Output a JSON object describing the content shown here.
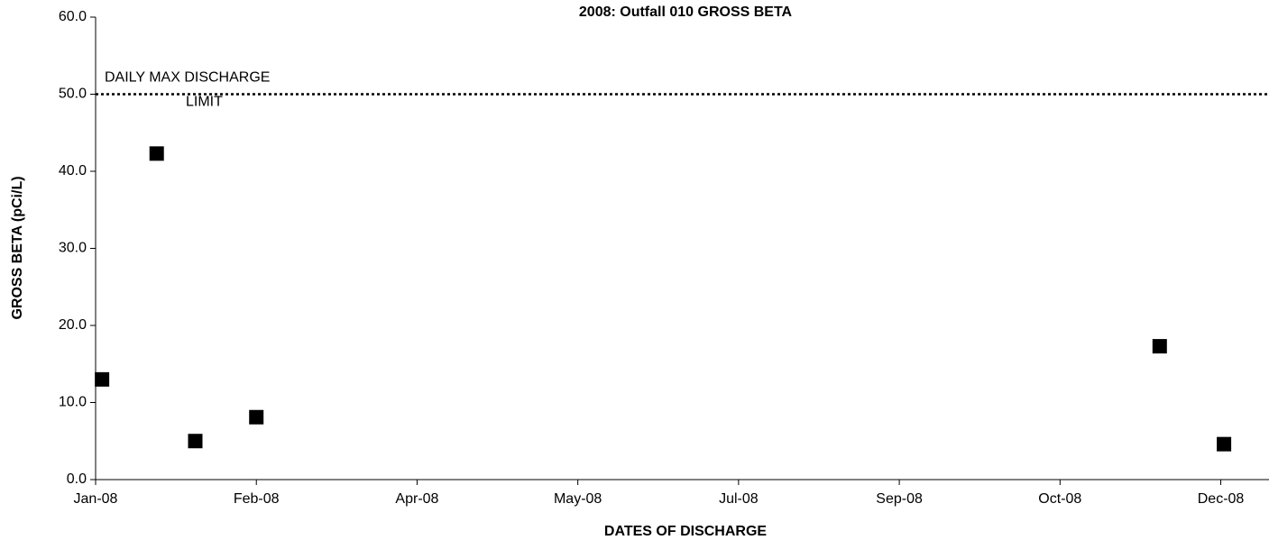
{
  "chart_data": {
    "type": "scatter",
    "title": "2008: Outfall 010 GROSS BETA",
    "x_label": "DATES OF DISCHARGE",
    "y_label": "GROSS BETA (pCi/L)",
    "series": [
      {
        "color": "#000000",
        "x": [
          2,
          19,
          31,
          50,
          331,
          351
        ],
        "values": [
          13.0,
          42.3,
          5.0,
          8.1,
          17.3,
          4.6
        ]
      }
    ],
    "xlim": [
      0,
      365
    ],
    "xticks": [
      {
        "value": 0,
        "label": "Jan-08"
      },
      {
        "value": 50,
        "label": "Feb-08"
      },
      {
        "value": 100,
        "label": "Apr-08"
      },
      {
        "value": 150,
        "label": "May-08"
      },
      {
        "value": 200,
        "label": "Jul-08"
      },
      {
        "value": 250,
        "label": "Sep-08"
      },
      {
        "value": 300,
        "label": "Oct-08"
      },
      {
        "value": 350,
        "label": "Dec-08"
      }
    ],
    "ylim": [
      0,
      60
    ],
    "yticks": [
      {
        "value": 0,
        "label": "0.0"
      },
      {
        "value": 10,
        "label": "10.0"
      },
      {
        "value": 20,
        "label": "20.0"
      },
      {
        "value": 30,
        "label": "30.0"
      },
      {
        "value": 40,
        "label": "40.0"
      },
      {
        "value": 50,
        "label": "50.0"
      },
      {
        "value": 60,
        "label": "60.0"
      }
    ],
    "limit_line": {
      "value": 50,
      "text": [
        "DAILY MAX DISCHARGE",
        "LIMIT"
      ]
    },
    "grid": false
  }
}
